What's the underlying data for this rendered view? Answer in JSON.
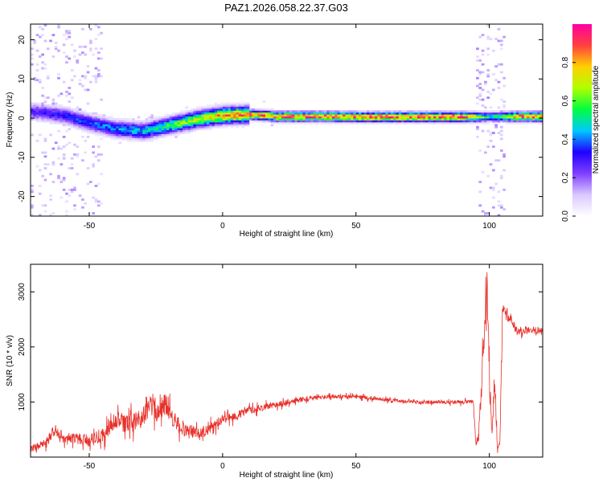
{
  "title": "PAZ1.2026.058.22.37.G03",
  "chart_data": [
    {
      "type": "heatmap",
      "xlabel": "Height of straight line (km)",
      "ylabel": "Frequency (Hz)",
      "xlim": [
        -72,
        120
      ],
      "ylim": [
        -25,
        24
      ],
      "x_ticks": [
        -50,
        0,
        50,
        100
      ],
      "y_ticks": [
        -20,
        -10,
        0,
        10,
        20
      ],
      "grid": false,
      "colorbar": {
        "label": "Normalized spectral amplitude",
        "range": [
          0,
          1
        ],
        "ticks": [
          "0.0",
          "0.2",
          "0.4",
          "0.6",
          "0.8"
        ],
        "tick_values": [
          0.0,
          0.2,
          0.4,
          0.6,
          0.8
        ],
        "colormap": [
          "#ffffff",
          "#d9c8ff",
          "#7f3fff",
          "#2000ff",
          "#00c8ff",
          "#00ff40",
          "#b0ff00",
          "#ffd000",
          "#ff4040",
          "#ff00a0"
        ]
      },
      "ridge": {
        "height_km": [
          -72,
          -60,
          -50,
          -40,
          -30,
          -20,
          -10,
          0,
          10,
          20,
          30,
          40,
          50,
          60,
          70,
          80,
          90,
          100,
          110,
          120
        ],
        "frequency_hz": [
          1.5,
          0.5,
          -1.5,
          -3.0,
          -3.5,
          -2.0,
          -0.5,
          0.5,
          0.7,
          0.2,
          0.2,
          0.2,
          0.1,
          0.1,
          0.1,
          0.1,
          0.1,
          0.1,
          0.2,
          0.2
        ],
        "peak_amplitude": [
          0.3,
          0.35,
          0.4,
          0.45,
          0.5,
          0.6,
          0.75,
          0.85,
          0.9,
          0.95,
          0.92,
          0.95,
          0.95,
          0.95,
          0.95,
          0.95,
          0.95,
          0.5,
          0.9,
          0.95
        ]
      }
    },
    {
      "type": "line",
      "xlabel": "Height of straight line (km)",
      "ylabel": "SNR (10 * v/v)",
      "xlim": [
        -72,
        120
      ],
      "ylim": [
        0,
        3500
      ],
      "x_ticks": [
        -50,
        0,
        50,
        100
      ],
      "y_ticks": [
        1000,
        2000,
        3000
      ],
      "grid": false,
      "series": [
        {
          "color": "#e8302a",
          "x": [
            -72,
            -66,
            -63,
            -60,
            -55,
            -50,
            -45,
            -40,
            -35,
            -30,
            -27,
            -24,
            -21,
            -19,
            -15,
            -10,
            -5,
            0,
            5,
            10,
            15,
            20,
            25,
            30,
            40,
            50,
            60,
            70,
            80,
            90,
            94,
            95,
            96,
            98,
            99,
            100,
            101,
            102,
            103,
            104,
            105,
            106,
            108,
            110,
            115,
            120
          ],
          "y": [
            150,
            250,
            500,
            300,
            350,
            300,
            400,
            650,
            600,
            700,
            1000,
            800,
            1000,
            700,
            500,
            450,
            500,
            700,
            750,
            850,
            900,
            950,
            1000,
            1050,
            1100,
            1100,
            1050,
            1000,
            1000,
            1000,
            1000,
            200,
            400,
            2000,
            3200,
            1600,
            400,
            1500,
            200,
            300,
            2800,
            2600,
            2500,
            2300,
            2300,
            2300
          ],
          "noise_amplitude": [
            120,
            200,
            250,
            200,
            220,
            250,
            300,
            400,
            380,
            400,
            500,
            450,
            500,
            400,
            300,
            250,
            220,
            200,
            180,
            150,
            130,
            120,
            110,
            100,
            80,
            80,
            75,
            70,
            70,
            80,
            80,
            150,
            300,
            900,
            800,
            900,
            300,
            700,
            150,
            250,
            500,
            350,
            250,
            200,
            150,
            150
          ]
        }
      ]
    }
  ]
}
